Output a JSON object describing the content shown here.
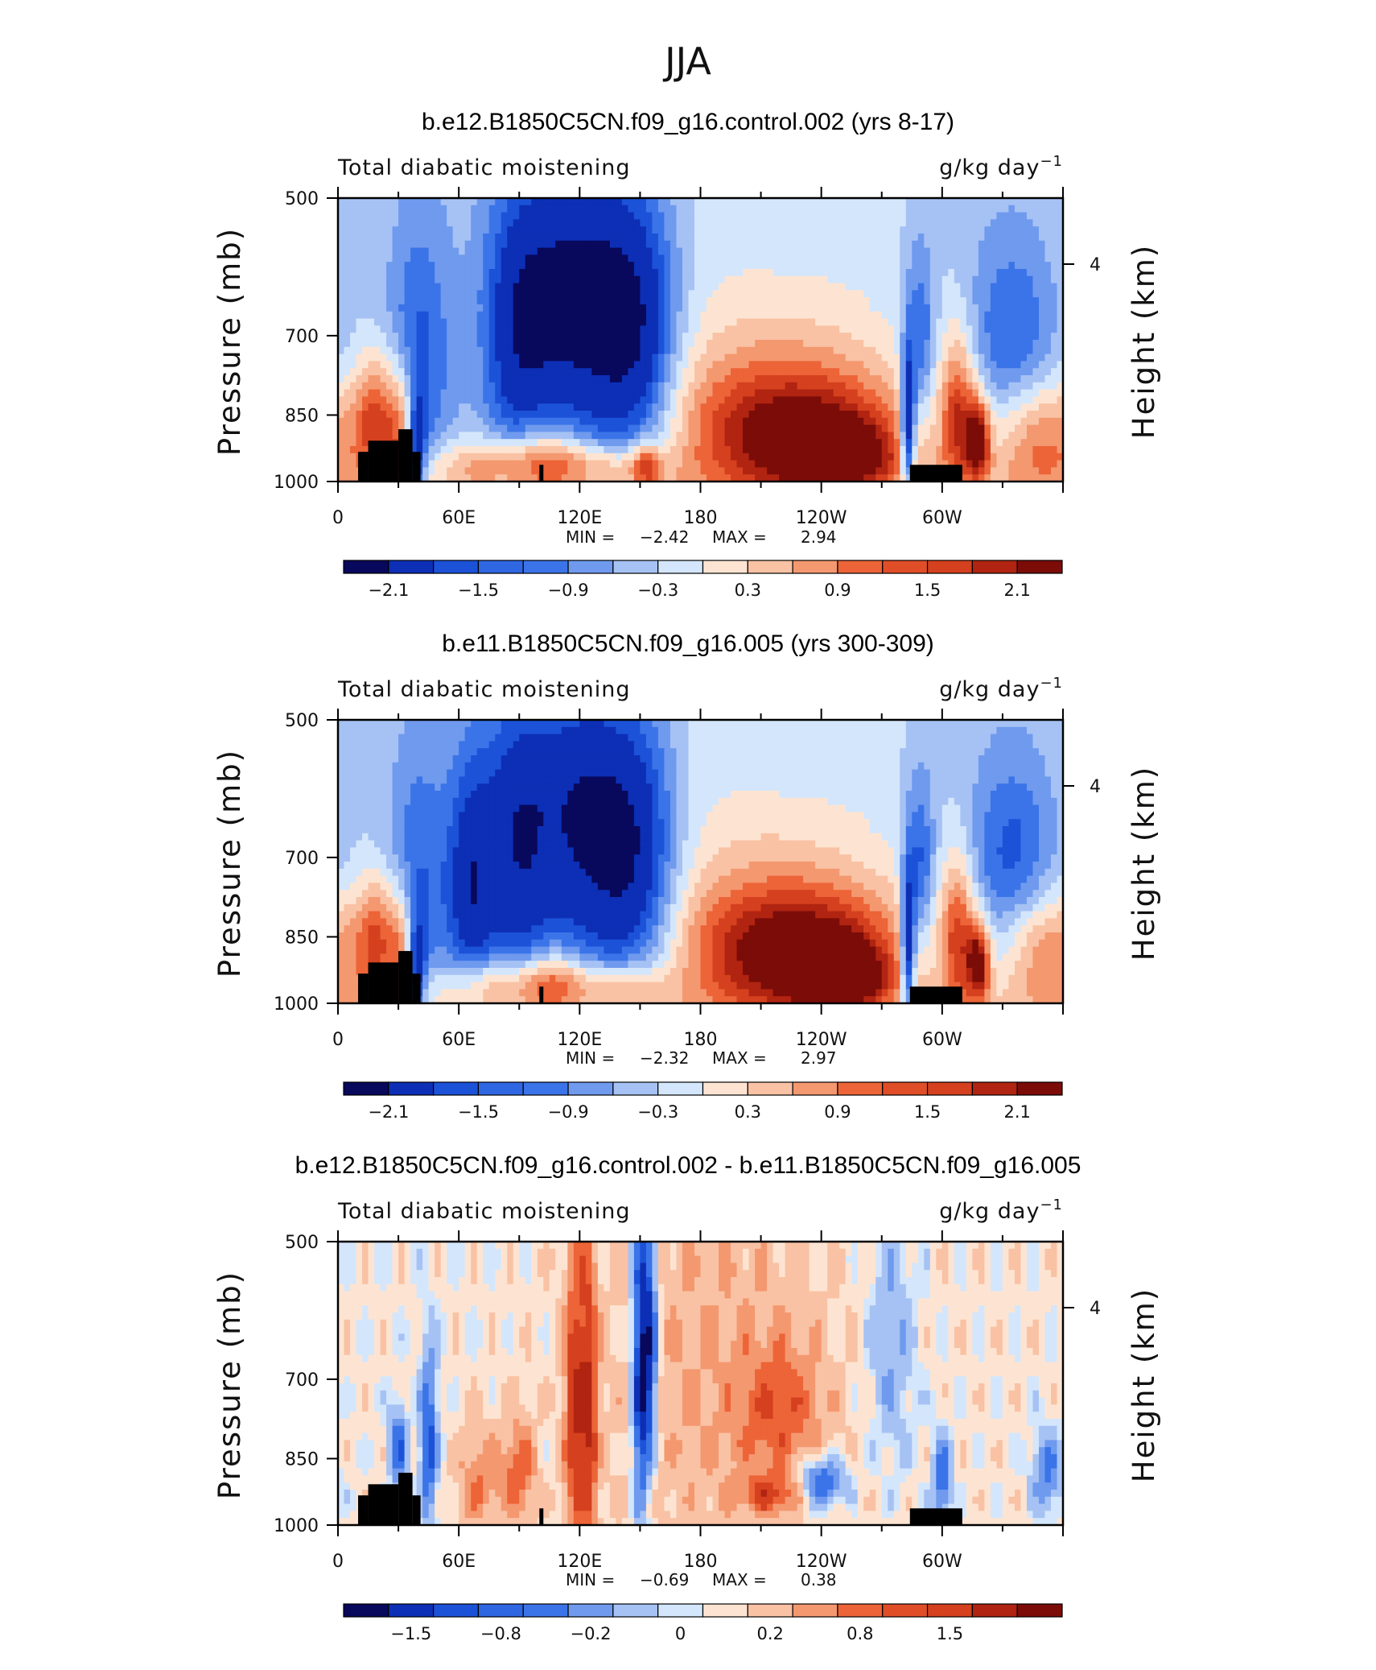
{
  "figure": {
    "super_title": "JJA"
  },
  "chart_data": [
    {
      "type": "heatmap",
      "title": "b.e12.B1850C5CN.f09_g16.control.002 (yrs 8-17)",
      "variable": "Total diabatic moistening",
      "units": "g/kg day",
      "units_exp": "−1",
      "ylabel": "Pressure (mb)",
      "ylabel_right": "Height (km)",
      "yticks": [
        "500",
        "700",
        "850",
        "1000"
      ],
      "yticks_right": [
        "4"
      ],
      "xticks": [
        "0",
        "60E",
        "120E",
        "180",
        "120W",
        "60W"
      ],
      "ylim": [
        1000,
        500
      ],
      "min_label": "MIN =",
      "min": "−2.42",
      "max_label": "MAX =",
      "max": "2.94",
      "colorbar_labels": [
        "−2.1",
        "−1.5",
        "−0.9",
        "−0.3",
        "0.3",
        "0.9",
        "1.5",
        "2.1"
      ],
      "features": [
        {
          "lon": 40,
          "p": 740,
          "value": -1.0,
          "wlon": 12,
          "wp": 180
        },
        {
          "lon": 88,
          "p": 720,
          "value": -1.2,
          "wlon": 12,
          "wp": 170
        },
        {
          "lon": 125,
          "p": 710,
          "value": -1.5,
          "wlon": 20,
          "wp": 180
        },
        {
          "lon": 150,
          "p": 730,
          "value": -1.3,
          "wlon": 14,
          "wp": 160
        },
        {
          "lon": 128,
          "p": 590,
          "value": -0.6,
          "wlon": 28,
          "wp": 90
        },
        {
          "lon": 105,
          "p": 650,
          "value": -0.5,
          "wlon": 14,
          "wp": 120
        },
        {
          "lon": 20,
          "p": 860,
          "value": 1.6,
          "wlon": 8,
          "wp": 90
        },
        {
          "lon": 32,
          "p": 900,
          "value": 1.2,
          "wlon": 5,
          "wp": 100
        },
        {
          "lon": 39,
          "p": 930,
          "value": -1.7,
          "wlon": 3,
          "wp": 80
        },
        {
          "lon": 75,
          "p": 955,
          "value": 0.9,
          "wlon": 20,
          "wp": 45
        },
        {
          "lon": 105,
          "p": 950,
          "value": 1.2,
          "wlon": 14,
          "wp": 55
        },
        {
          "lon": 135,
          "p": 960,
          "value": 0.8,
          "wlon": 18,
          "wp": 40
        },
        {
          "lon": 153,
          "p": 965,
          "value": 1.2,
          "wlon": 5,
          "wp": 40
        },
        {
          "lon": 230,
          "p": 905,
          "value": 2.0,
          "wlon": 38,
          "wp": 95
        },
        {
          "lon": 248,
          "p": 935,
          "value": 1.9,
          "wlon": 16,
          "wp": 45
        },
        {
          "lon": 215,
          "p": 810,
          "value": 0.9,
          "wlon": 45,
          "wp": 120
        },
        {
          "lon": 283,
          "p": 880,
          "value": -2.3,
          "wlon": 2.5,
          "wp": 110
        },
        {
          "lon": 289,
          "p": 710,
          "value": -1.0,
          "wlon": 5,
          "wp": 110
        },
        {
          "lon": 308,
          "p": 850,
          "value": 1.6,
          "wlon": 6,
          "wp": 110
        },
        {
          "lon": 318,
          "p": 905,
          "value": 2.1,
          "wlon": 4,
          "wp": 60
        },
        {
          "lon": 335,
          "p": 710,
          "value": -0.9,
          "wlon": 15,
          "wp": 110
        },
        {
          "lon": 350,
          "p": 900,
          "value": 1.3,
          "wlon": 18,
          "wp": 90
        },
        {
          "lon": 195,
          "p": 580,
          "value": 0.25,
          "wlon": 45,
          "wp": 120
        }
      ]
    },
    {
      "type": "heatmap",
      "title": "b.e11.B1850C5CN.f09_g16.005 (yrs 300-309)",
      "variable": "Total diabatic moistening",
      "units": "g/kg day",
      "units_exp": "−1",
      "ylabel": "Pressure (mb)",
      "ylabel_right": "Height (km)",
      "yticks": [
        "500",
        "700",
        "850",
        "1000"
      ],
      "yticks_right": [
        "4"
      ],
      "xticks": [
        "0",
        "60E",
        "120E",
        "180",
        "120W",
        "60W"
      ],
      "ylim": [
        1000,
        500
      ],
      "min_label": "MIN =",
      "min": "−2.32",
      "max_label": "MAX =",
      "max": "2.97",
      "colorbar_labels": [
        "−2.1",
        "−1.5",
        "−0.9",
        "−0.3",
        "0.3",
        "0.9",
        "1.5",
        "2.1"
      ],
      "features": [
        {
          "lon": 40,
          "p": 740,
          "value": -0.9,
          "wlon": 12,
          "wp": 180
        },
        {
          "lon": 66,
          "p": 760,
          "value": -1.4,
          "wlon": 8,
          "wp": 150
        },
        {
          "lon": 88,
          "p": 720,
          "value": -1.3,
          "wlon": 12,
          "wp": 170
        },
        {
          "lon": 125,
          "p": 710,
          "value": -1.5,
          "wlon": 20,
          "wp": 180
        },
        {
          "lon": 150,
          "p": 730,
          "value": -1.2,
          "wlon": 14,
          "wp": 160
        },
        {
          "lon": 120,
          "p": 590,
          "value": -0.6,
          "wlon": 28,
          "wp": 90
        },
        {
          "lon": 20,
          "p": 860,
          "value": 1.5,
          "wlon": 8,
          "wp": 90
        },
        {
          "lon": 32,
          "p": 900,
          "value": 1.1,
          "wlon": 5,
          "wp": 100
        },
        {
          "lon": 39,
          "p": 930,
          "value": -1.6,
          "wlon": 3,
          "wp": 80
        },
        {
          "lon": 78,
          "p": 955,
          "value": 1.0,
          "wlon": 18,
          "wp": 45
        },
        {
          "lon": 108,
          "p": 950,
          "value": 1.3,
          "wlon": 12,
          "wp": 55
        },
        {
          "lon": 140,
          "p": 955,
          "value": 0.9,
          "wlon": 16,
          "wp": 40
        },
        {
          "lon": 230,
          "p": 895,
          "value": 2.2,
          "wlon": 36,
          "wp": 90
        },
        {
          "lon": 250,
          "p": 935,
          "value": 1.9,
          "wlon": 14,
          "wp": 45
        },
        {
          "lon": 215,
          "p": 810,
          "value": 0.9,
          "wlon": 45,
          "wp": 120
        },
        {
          "lon": 283,
          "p": 880,
          "value": -2.2,
          "wlon": 2.5,
          "wp": 110
        },
        {
          "lon": 289,
          "p": 720,
          "value": -1.1,
          "wlon": 5,
          "wp": 110
        },
        {
          "lon": 308,
          "p": 850,
          "value": 1.5,
          "wlon": 6,
          "wp": 110
        },
        {
          "lon": 318,
          "p": 905,
          "value": 2.1,
          "wlon": 4,
          "wp": 60
        },
        {
          "lon": 335,
          "p": 710,
          "value": -1.0,
          "wlon": 15,
          "wp": 110
        },
        {
          "lon": 352,
          "p": 880,
          "value": 1.3,
          "wlon": 16,
          "wp": 90
        },
        {
          "lon": 195,
          "p": 580,
          "value": 0.25,
          "wlon": 45,
          "wp": 120
        }
      ]
    },
    {
      "type": "heatmap",
      "title": "b.e12.B1850C5CN.f09_g16.control.002 - b.e11.B1850C5CN.f09_g16.005",
      "variable": "Total diabatic moistening",
      "units": "g/kg day",
      "units_exp": "−1",
      "ylabel": "Pressure (mb)",
      "ylabel_right": "Height (km)",
      "yticks": [
        "500",
        "700",
        "850",
        "1000"
      ],
      "yticks_right": [
        "4"
      ],
      "xticks": [
        "0",
        "60E",
        "120E",
        "180",
        "120W",
        "60W"
      ],
      "ylim": [
        1000,
        500
      ],
      "min_label": "MIN =",
      "min": "−0.69",
      "max_label": "MAX =",
      "max": "0.38",
      "colorbar_labels": [
        "−1.5",
        "−0.8",
        "−0.2",
        "0",
        "0.2",
        "0.8",
        "1.5"
      ],
      "features": [
        {
          "lon": 118,
          "p": 760,
          "value": 0.35,
          "wlon": 4,
          "wp": 200
        },
        {
          "lon": 125,
          "p": 760,
          "value": 0.3,
          "wlon": 3,
          "wp": 200
        },
        {
          "lon": 150,
          "p": 700,
          "value": -0.45,
          "wlon": 3,
          "wp": 200
        },
        {
          "lon": 155,
          "p": 650,
          "value": -0.4,
          "wlon": 3,
          "wp": 150
        },
        {
          "lon": 90,
          "p": 880,
          "value": 0.25,
          "wlon": 6,
          "wp": 80
        },
        {
          "lon": 70,
          "p": 900,
          "value": 0.2,
          "wlon": 8,
          "wp": 80
        },
        {
          "lon": 45,
          "p": 820,
          "value": -0.35,
          "wlon": 3,
          "wp": 120
        },
        {
          "lon": 30,
          "p": 830,
          "value": -0.3,
          "wlon": 3,
          "wp": 60
        },
        {
          "lon": 240,
          "p": 900,
          "value": -0.35,
          "wlon": 8,
          "wp": 40
        },
        {
          "lon": 215,
          "p": 930,
          "value": 0.25,
          "wlon": 10,
          "wp": 30
        },
        {
          "lon": 220,
          "p": 760,
          "value": 0.2,
          "wlon": 15,
          "wp": 90
        },
        {
          "lon": 300,
          "p": 900,
          "value": -0.3,
          "wlon": 3,
          "wp": 70
        },
        {
          "lon": 275,
          "p": 650,
          "value": -0.15,
          "wlon": 8,
          "wp": 150
        },
        {
          "lon": 185,
          "p": 700,
          "value": 0.12,
          "wlon": 40,
          "wp": 300
        },
        {
          "lon": 352,
          "p": 880,
          "value": -0.25,
          "wlon": 5,
          "wp": 60
        }
      ]
    }
  ]
}
